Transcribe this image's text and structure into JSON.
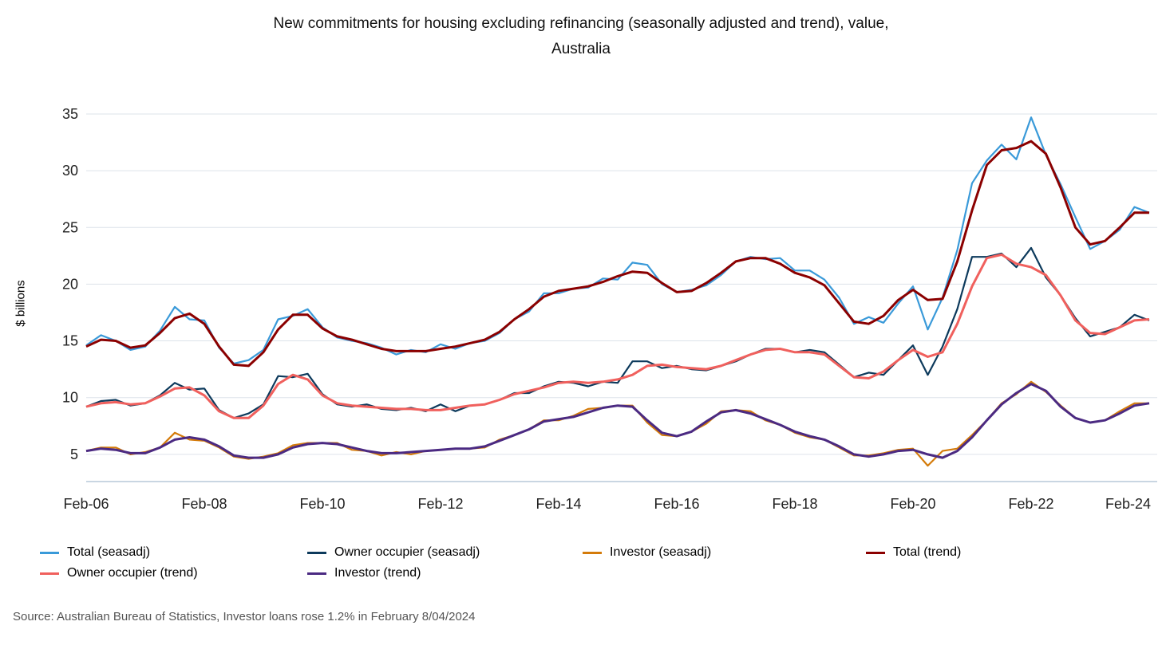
{
  "chart_data": {
    "type": "line",
    "title": "New commitments for housing excluding refinancing (seasonally adjusted and trend), value,",
    "title_line2": "Australia",
    "ylabel": "$ billions",
    "xlabel": "",
    "x_start": "Feb-06",
    "x_step_months": 3,
    "x_ticks": [
      "Feb-06",
      "Feb-08",
      "Feb-10",
      "Feb-12",
      "Feb-14",
      "Feb-16",
      "Feb-18",
      "Feb-20",
      "Feb-22",
      "Feb-24"
    ],
    "y_ticks": [
      5,
      10,
      15,
      20,
      25,
      30,
      35
    ],
    "ylim": [
      2.6,
      35.5
    ],
    "grid": true,
    "legend_placement": "bottom",
    "series": [
      {
        "name": "Total (seasadj)",
        "color": "#3A9AD9",
        "values": [
          14.6,
          15.5,
          15.0,
          14.2,
          14.5,
          15.9,
          18.0,
          16.9,
          16.8,
          14.4,
          13.0,
          13.3,
          14.2,
          16.9,
          17.2,
          17.8,
          16.2,
          15.3,
          15.0,
          14.8,
          14.4,
          13.8,
          14.2,
          14.0,
          14.7,
          14.3,
          14.8,
          15.0,
          15.7,
          16.9,
          17.6,
          19.2,
          19.2,
          19.6,
          19.7,
          20.5,
          20.4,
          21.9,
          21.7,
          20.0,
          19.3,
          19.5,
          19.9,
          20.8,
          22.0,
          22.4,
          22.2,
          22.3,
          21.2,
          21.2,
          20.4,
          18.8,
          16.5,
          17.1,
          16.6,
          18.3,
          19.8,
          16.0,
          18.8,
          23.0,
          28.9,
          30.9,
          32.3,
          31.0,
          34.7,
          31.4,
          28.8,
          25.9,
          23.1,
          23.8,
          24.8,
          26.8,
          26.3
        ]
      },
      {
        "name": "Owner occupier (seasadj)",
        "color": "#0D3A5C",
        "values": [
          9.2,
          9.7,
          9.8,
          9.3,
          9.5,
          10.2,
          11.3,
          10.7,
          10.8,
          8.9,
          8.2,
          8.6,
          9.4,
          11.9,
          11.8,
          12.1,
          10.3,
          9.4,
          9.2,
          9.4,
          9.0,
          8.9,
          9.1,
          8.8,
          9.4,
          8.8,
          9.3,
          9.4,
          9.8,
          10.4,
          10.4,
          11.0,
          11.4,
          11.3,
          11.0,
          11.4,
          11.3,
          13.2,
          13.2,
          12.6,
          12.8,
          12.5,
          12.4,
          12.8,
          13.2,
          13.8,
          14.3,
          14.3,
          14.0,
          14.2,
          14.0,
          12.9,
          11.8,
          12.2,
          12.0,
          13.3,
          14.6,
          12.0,
          14.5,
          17.8,
          22.4,
          22.4,
          22.7,
          21.5,
          23.2,
          20.6,
          19.0,
          17.0,
          15.4,
          15.8,
          16.2,
          17.3,
          16.8
        ]
      },
      {
        "name": "Investor (seasadj)",
        "color": "#D47B0A",
        "values": [
          5.3,
          5.6,
          5.6,
          5.0,
          5.2,
          5.6,
          6.9,
          6.3,
          6.2,
          5.6,
          4.8,
          4.6,
          4.8,
          5.1,
          5.8,
          6.0,
          6.0,
          6.0,
          5.4,
          5.3,
          4.9,
          5.2,
          5.0,
          5.3,
          5.4,
          5.5,
          5.5,
          5.6,
          6.3,
          6.7,
          7.2,
          8.0,
          8.0,
          8.4,
          9.0,
          9.1,
          9.3,
          9.3,
          7.8,
          6.7,
          6.6,
          7.0,
          7.7,
          8.8,
          8.9,
          8.8,
          8.0,
          7.6,
          6.9,
          6.5,
          6.3,
          5.6,
          4.9,
          4.9,
          5.1,
          5.4,
          5.5,
          4.0,
          5.3,
          5.5,
          6.7,
          8.0,
          9.5,
          10.3,
          11.4,
          10.5,
          9.3,
          8.2,
          7.8,
          8.0,
          8.8,
          9.5,
          9.5
        ]
      },
      {
        "name": "Total (trend)",
        "color": "#8B0000",
        "values": [
          14.5,
          15.1,
          15.0,
          14.4,
          14.6,
          15.7,
          17.0,
          17.4,
          16.5,
          14.5,
          12.9,
          12.8,
          14.0,
          16.0,
          17.3,
          17.3,
          16.1,
          15.4,
          15.1,
          14.7,
          14.3,
          14.1,
          14.1,
          14.1,
          14.3,
          14.5,
          14.8,
          15.1,
          15.8,
          16.9,
          17.8,
          18.9,
          19.4,
          19.6,
          19.8,
          20.2,
          20.7,
          21.1,
          21.0,
          20.1,
          19.3,
          19.4,
          20.1,
          21.0,
          22.0,
          22.3,
          22.3,
          21.8,
          21.0,
          20.6,
          19.9,
          18.3,
          16.7,
          16.5,
          17.2,
          18.6,
          19.5,
          18.6,
          18.7,
          22.0,
          26.5,
          30.5,
          31.8,
          32.0,
          32.6,
          31.5,
          28.5,
          25.0,
          23.5,
          23.8,
          25.0,
          26.3,
          26.3
        ]
      },
      {
        "name": "Owner occupier (trend)",
        "color": "#F0605D",
        "values": [
          9.2,
          9.5,
          9.6,
          9.4,
          9.5,
          10.1,
          10.8,
          10.9,
          10.2,
          8.8,
          8.2,
          8.2,
          9.3,
          11.2,
          12.0,
          11.6,
          10.2,
          9.5,
          9.3,
          9.2,
          9.1,
          9.0,
          9.0,
          8.9,
          8.9,
          9.1,
          9.3,
          9.4,
          9.8,
          10.3,
          10.6,
          10.9,
          11.3,
          11.4,
          11.3,
          11.4,
          11.6,
          12.0,
          12.8,
          12.9,
          12.7,
          12.6,
          12.5,
          12.8,
          13.3,
          13.8,
          14.2,
          14.3,
          14.0,
          14.0,
          13.8,
          12.8,
          11.8,
          11.7,
          12.3,
          13.3,
          14.2,
          13.6,
          14.0,
          16.5,
          19.8,
          22.3,
          22.6,
          21.8,
          21.5,
          20.8,
          19.0,
          16.8,
          15.7,
          15.6,
          16.2,
          16.8,
          16.9
        ]
      },
      {
        "name": "Investor (trend)",
        "color": "#4B2A82",
        "values": [
          5.3,
          5.5,
          5.4,
          5.1,
          5.1,
          5.6,
          6.3,
          6.5,
          6.3,
          5.7,
          4.9,
          4.7,
          4.7,
          5.0,
          5.6,
          5.9,
          6.0,
          5.9,
          5.6,
          5.3,
          5.1,
          5.1,
          5.2,
          5.3,
          5.4,
          5.5,
          5.5,
          5.7,
          6.2,
          6.7,
          7.2,
          7.9,
          8.1,
          8.3,
          8.7,
          9.1,
          9.3,
          9.2,
          8.0,
          6.9,
          6.6,
          7.0,
          7.9,
          8.7,
          8.9,
          8.6,
          8.1,
          7.6,
          7.0,
          6.6,
          6.3,
          5.7,
          5.0,
          4.8,
          5.0,
          5.3,
          5.4,
          5.0,
          4.7,
          5.3,
          6.5,
          8.0,
          9.4,
          10.4,
          11.2,
          10.6,
          9.2,
          8.2,
          7.8,
          8.0,
          8.6,
          9.3,
          9.5
        ]
      }
    ]
  },
  "source": "Source: Australian Bureau of Statistics, Investor loans rose 1.2% in February 8/04/2024"
}
